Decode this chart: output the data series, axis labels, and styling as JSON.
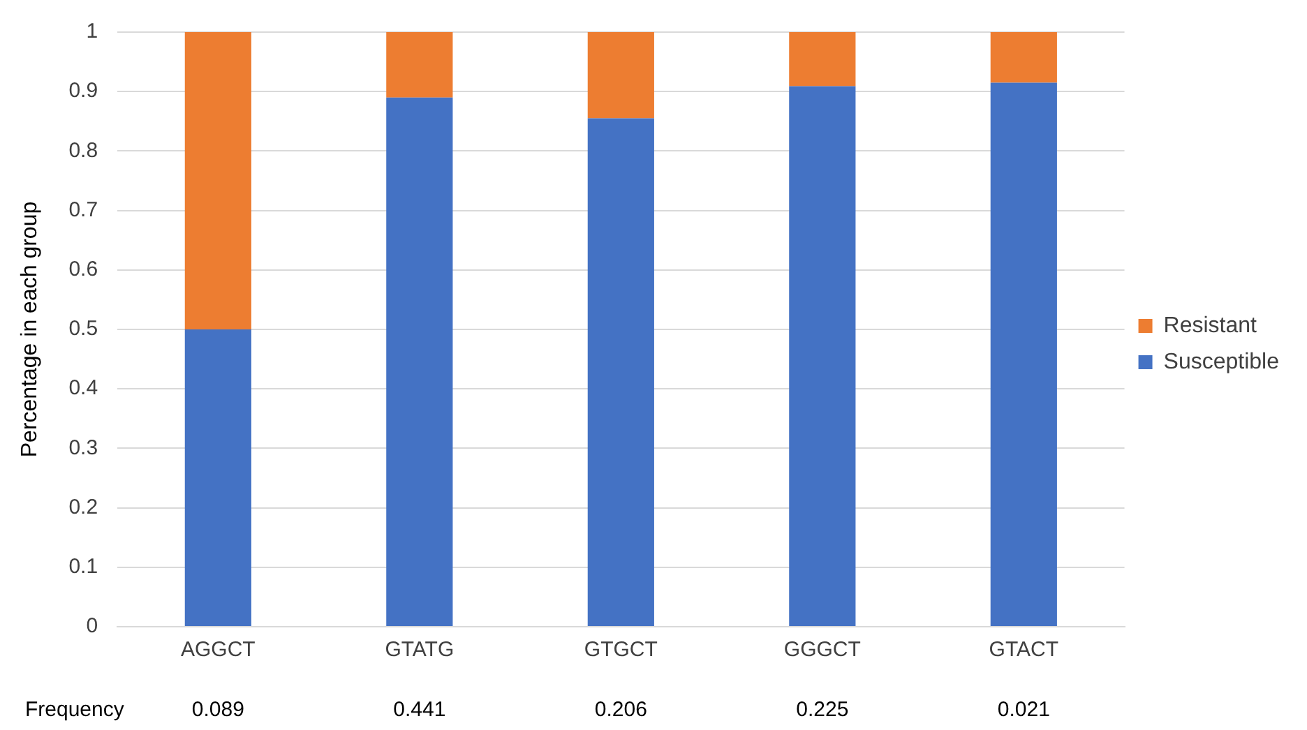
{
  "chart_data": {
    "type": "bar",
    "stacked": true,
    "ylabel": "Percentage in each group",
    "categories": [
      "AGGCT",
      "GTATG",
      "GTGCT",
      "GGGCT",
      "GTACT"
    ],
    "series": [
      {
        "name": "Susceptible",
        "color": "#4472c4",
        "values": [
          0.5,
          0.89,
          0.855,
          0.909,
          0.915
        ]
      },
      {
        "name": "Resistant",
        "color": "#ed7d31",
        "values": [
          0.5,
          0.11,
          0.145,
          0.091,
          0.085
        ]
      }
    ],
    "ylim": [
      0,
      1
    ],
    "yticks": [
      0,
      0.1,
      0.2,
      0.3,
      0.4,
      0.5,
      0.6,
      0.7,
      0.8,
      0.9,
      1
    ],
    "grid": "y",
    "legend": "right",
    "annotations": [
      "Frequency",
      "0.089",
      "0.441",
      "0.206",
      "0.225",
      "0.021"
    ]
  }
}
